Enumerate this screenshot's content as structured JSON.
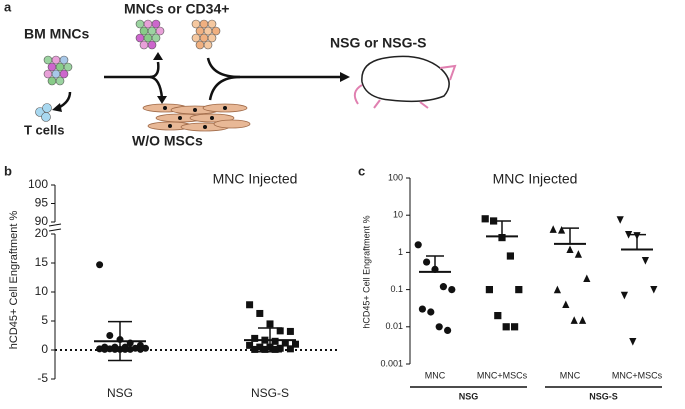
{
  "panel_labels": [
    "a",
    "b",
    "c"
  ],
  "diagram": {
    "source": "BM MNCs",
    "selected": "MNCs or CD34+",
    "depleted": "T cells",
    "culture": "W/O MSCs",
    "recipient": "NSG or NSG-S"
  },
  "chart_data": [
    {
      "type": "dot",
      "title": "MNC Injected",
      "y_label": "hCD45+  Cell Engraftment %",
      "ylim": [
        -5,
        20
      ],
      "yticks": [
        -5,
        0,
        5,
        10,
        15,
        20
      ],
      "ylim_upper": [
        90,
        100
      ],
      "yticks_upper": [
        90,
        95,
        100
      ],
      "reference_line": 0,
      "groups": [
        {
          "label": "NSG",
          "marker": "circle",
          "mean": 1.5,
          "error_low": -1.8,
          "error_high": 4.9,
          "values": [
            14.7,
            2.5,
            1.8,
            1.2,
            0.8,
            0.5,
            0.5,
            0.5,
            0.3,
            0.3,
            0.2,
            0.2,
            0.1,
            0.1,
            0.1,
            0.1,
            0.1,
            0.1
          ]
        },
        {
          "label": "NSG-S",
          "marker": "square",
          "mean": 1.7,
          "error_low": -0.3,
          "error_high": 3.8,
          "values": [
            7.8,
            6.3,
            4.5,
            3.3,
            3.2,
            2.0,
            1.7,
            1.5,
            1.2,
            1.0,
            0.8,
            0.5,
            0.5,
            0.3,
            0.2,
            0.1,
            0.1,
            0.1
          ]
        }
      ]
    },
    {
      "type": "dot",
      "title": "MNC Injected",
      "y_label": "hCD45+ Cell Engraftment %",
      "log_scale": true,
      "ylim": [
        0.001,
        100
      ],
      "yticks": [
        0.001,
        0.01,
        0.1,
        1,
        10,
        100
      ],
      "groups": [
        {
          "label": "MNC",
          "marker": "circle",
          "mean": 0.3,
          "error_high": 0.8,
          "values": [
            1.6,
            0.55,
            0.35,
            0.12,
            0.1,
            0.03,
            0.025,
            0.01,
            0.008
          ]
        },
        {
          "label": "MNC+MSCs",
          "marker": "square",
          "mean": 2.7,
          "error_high": 7,
          "values": [
            8,
            7,
            2.5,
            0.8,
            0.1,
            0.1,
            0.02,
            0.01,
            0.01
          ]
        },
        {
          "label": "MNC",
          "marker": "triangle",
          "mean": 1.7,
          "error_high": 4.5,
          "values": [
            4.2,
            4,
            1.2,
            0.9,
            0.2,
            0.1,
            0.04,
            0.015,
            0.015
          ]
        },
        {
          "label": "MNC+MSCs",
          "marker": "triangle-down",
          "mean": 1.2,
          "error_high": 3,
          "values": [
            7.5,
            3,
            2.8,
            0.6,
            0.1,
            0.07,
            0.004
          ]
        }
      ],
      "group_sets": [
        {
          "label": "NSG"
        },
        {
          "label": "NSG-S"
        }
      ]
    }
  ]
}
